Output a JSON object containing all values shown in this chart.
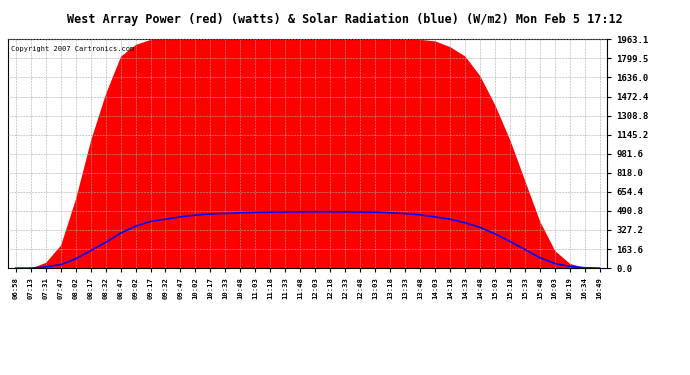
{
  "title": "West Array Power (red) (watts) & Solar Radiation (blue) (W/m2) Mon Feb 5 17:12",
  "copyright": "Copyright 2007 Cartronics.com",
  "x_labels": [
    "06:58",
    "07:13",
    "07:31",
    "07:47",
    "08:02",
    "08:17",
    "08:32",
    "08:47",
    "09:02",
    "09:17",
    "09:32",
    "09:47",
    "10:02",
    "10:17",
    "10:33",
    "10:48",
    "11:03",
    "11:18",
    "11:33",
    "11:48",
    "12:03",
    "12:18",
    "12:33",
    "12:48",
    "13:03",
    "13:18",
    "13:33",
    "13:48",
    "14:03",
    "14:18",
    "14:33",
    "14:48",
    "15:03",
    "15:18",
    "15:33",
    "15:48",
    "16:03",
    "16:19",
    "16:34",
    "16:49"
  ],
  "y_max": 1963.1,
  "y_ticks": [
    0.0,
    163.6,
    327.2,
    490.8,
    654.4,
    818.0,
    981.6,
    1145.2,
    1308.8,
    1472.4,
    1636.0,
    1799.5,
    1963.1
  ],
  "background_color": "#ffffff",
  "plot_bg_color": "#ffffff",
  "grid_color": "#aaaaaa",
  "red_fill_color": "#ff0000",
  "blue_line_color": "#0000ff",
  "title_bg": "#cccccc",
  "pv_power": [
    0,
    0,
    50,
    200,
    600,
    1100,
    1500,
    1820,
    1920,
    1963,
    1963,
    1963,
    1963,
    1963,
    1963,
    1963,
    1963,
    1963,
    1963,
    1963,
    1963,
    1963,
    1963,
    1963,
    1963,
    1963,
    1963,
    1963,
    1950,
    1900,
    1820,
    1650,
    1400,
    1100,
    750,
    400,
    150,
    40,
    5,
    0
  ],
  "solar_rad": [
    0,
    0,
    10,
    30,
    80,
    150,
    220,
    300,
    360,
    400,
    420,
    440,
    455,
    465,
    470,
    475,
    478,
    480,
    482,
    483,
    484,
    484,
    483,
    482,
    480,
    475,
    468,
    458,
    440,
    420,
    390,
    350,
    295,
    230,
    160,
    90,
    40,
    15,
    3,
    0
  ]
}
